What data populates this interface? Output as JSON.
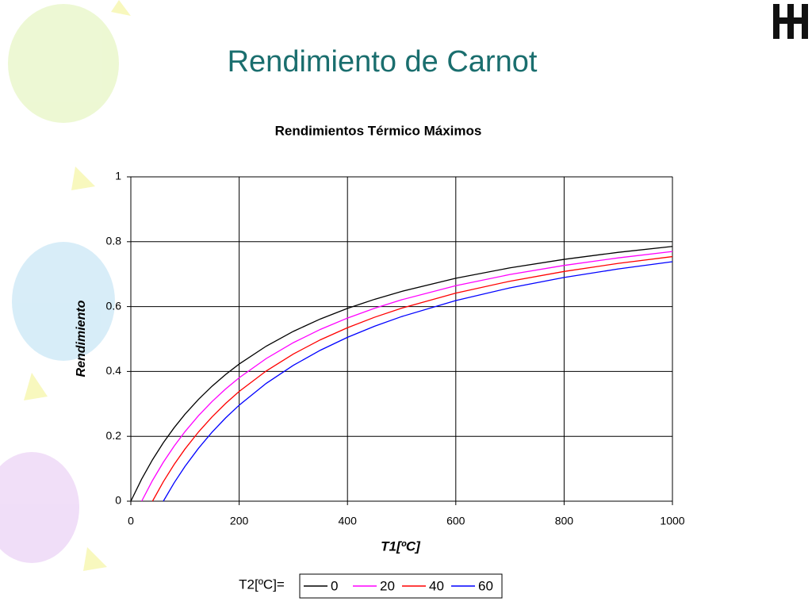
{
  "title": "Rendimiento de Carnot",
  "chart_data": {
    "type": "line",
    "title": "Rendimientos Térmico Máximos",
    "x_label": "T1[ºC]",
    "y_label": "Rendimiento",
    "legend_title": "T2[ºC]=",
    "x": [
      0,
      20,
      40,
      60,
      80,
      100,
      125,
      150,
      175,
      200,
      250,
      300,
      350,
      400,
      450,
      500,
      600,
      700,
      800,
      900,
      1000
    ],
    "series": [
      {
        "name": "0",
        "color": "#000000",
        "values": [
          0,
          0.0683,
          0.1278,
          0.1802,
          0.2266,
          0.2681,
          0.3141,
          0.3546,
          0.3906,
          0.4228,
          0.478,
          0.5236,
          0.5618,
          0.5944,
          0.6224,
          0.6468,
          0.6873,
          0.7194,
          0.7456,
          0.7673,
          0.7855
        ]
      },
      {
        "name": "20",
        "color": "#ff00ff",
        "values": [
          null,
          0,
          0.0639,
          0.1201,
          0.17,
          0.2145,
          0.2638,
          0.3073,
          0.346,
          0.3805,
          0.4398,
          0.4887,
          0.5297,
          0.5646,
          0.5947,
          0.621,
          0.6644,
          0.6989,
          0.7269,
          0.7502,
          0.7698
        ]
      },
      {
        "name": "40",
        "color": "#ff0000",
        "values": [
          null,
          null,
          0,
          0.0601,
          0.1133,
          0.1609,
          0.2136,
          0.26,
          0.3013,
          0.3383,
          0.4015,
          0.4538,
          0.4976,
          0.5349,
          0.5671,
          0.5951,
          0.6415,
          0.6783,
          0.7083,
          0.7332,
          0.7541
        ]
      },
      {
        "name": "60",
        "color": "#0000ff",
        "values": [
          null,
          null,
          null,
          0,
          0.0567,
          0.1072,
          0.1633,
          0.2128,
          0.2567,
          0.296,
          0.3633,
          0.4188,
          0.4655,
          0.5052,
          0.5394,
          0.5692,
          0.6186,
          0.6578,
          0.6897,
          0.7161,
          0.7384
        ]
      }
    ],
    "xlim": [
      0,
      1000
    ],
    "xticks": [
      0,
      200,
      400,
      600,
      800,
      1000
    ],
    "ylim": [
      0,
      1
    ],
    "yticks": [
      0,
      0.2,
      0.4,
      0.6,
      0.8,
      1
    ],
    "grid": true,
    "legend_position": "bottom"
  }
}
